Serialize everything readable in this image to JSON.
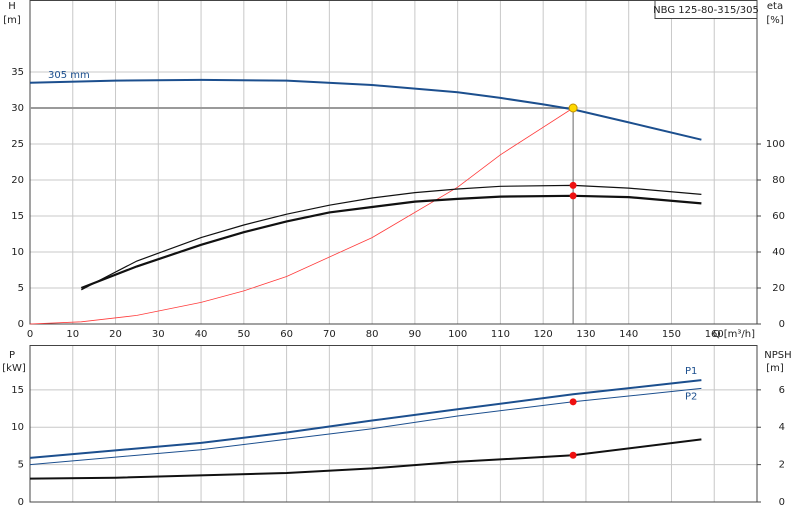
{
  "chart_data": [
    {
      "type": "line",
      "title": "NBG 125-80-315/305",
      "ylabel": "H",
      "yunit": "[m]",
      "y2label": "eta",
      "y2unit": "[%]",
      "xlabel": "Q [m³/h]",
      "xlim": [
        0,
        170
      ],
      "xticks": [
        0,
        10,
        20,
        30,
        40,
        50,
        60,
        70,
        80,
        90,
        100,
        110,
        120,
        130,
        140,
        150,
        160
      ],
      "ylim": [
        0,
        45
      ],
      "yticks": [
        0,
        5,
        10,
        15,
        20,
        25,
        30,
        35
      ],
      "y2lim": [
        0,
        180
      ],
      "y2ticks": [
        0,
        20,
        40,
        60,
        80,
        100
      ],
      "grid": true,
      "xtick_labels": true,
      "duty_point": {
        "x": 127,
        "y": 30
      },
      "series": [
        {
          "name": "305 mm",
          "color": "#1c4f8e",
          "width": 2,
          "x": [
            0,
            20,
            40,
            60,
            80,
            100,
            110,
            120,
            127,
            140,
            157
          ],
          "values": [
            33.5,
            33.8,
            33.9,
            33.8,
            33.2,
            32.2,
            31.4,
            30.5,
            29.8,
            28.0,
            25.6
          ]
        },
        {
          "color": "#ff3b3b",
          "width": 0.8,
          "x": [
            0,
            12,
            25,
            40,
            50,
            60,
            80,
            100,
            110,
            127
          ],
          "values": [
            0,
            0.3,
            1.2,
            3,
            4.6,
            6.6,
            12,
            19,
            23.5,
            30
          ]
        },
        {
          "color": "#111111",
          "width": 1.2,
          "axis": "y2",
          "x": [
            12,
            25,
            40,
            50,
            60,
            70,
            80,
            90,
            100,
            110,
            127,
            140,
            157
          ],
          "values": [
            19,
            35,
            48,
            55,
            61,
            66,
            70,
            73,
            75,
            76.5,
            77,
            75.5,
            72
          ]
        },
        {
          "color": "#111111",
          "width": 2.2,
          "axis": "y2",
          "x": [
            12,
            25,
            40,
            50,
            60,
            70,
            80,
            90,
            100,
            110,
            127,
            140,
            157
          ],
          "values": [
            20,
            32,
            44,
            51,
            57,
            62,
            65,
            68,
            69.5,
            70.8,
            71.2,
            70.5,
            67
          ]
        }
      ]
    },
    {
      "type": "line",
      "ylabel": "P",
      "yunit": "[kW]",
      "y2label": "NPSH",
      "y2unit": "[m]",
      "xlim": [
        0,
        170
      ],
      "xticks": [
        0,
        10,
        20,
        30,
        40,
        50,
        60,
        70,
        80,
        90,
        100,
        110,
        120,
        130,
        140,
        150,
        160
      ],
      "ylim": [
        0,
        21
      ],
      "yticks": [
        0,
        5,
        10,
        15
      ],
      "y2lim": [
        0,
        8.4
      ],
      "y2ticks": [
        0,
        2,
        4,
        6
      ],
      "grid": true,
      "xtick_labels": false,
      "duty_point": {
        "x": 127
      },
      "series": [
        {
          "name": "P1",
          "color": "#1c4f8e",
          "width": 2,
          "x": [
            0,
            20,
            40,
            60,
            80,
            100,
            127,
            157
          ],
          "values": [
            5.9,
            6.9,
            7.9,
            9.3,
            10.9,
            12.4,
            14.4,
            16.3
          ]
        },
        {
          "name": "P2",
          "color": "#1c4f8e",
          "width": 1,
          "x": [
            0,
            20,
            40,
            60,
            80,
            100,
            127,
            157
          ],
          "values": [
            5.0,
            6.0,
            7.0,
            8.4,
            9.8,
            11.5,
            13.4,
            15.2
          ]
        },
        {
          "color": "#111111",
          "width": 2,
          "axis": "y2",
          "x": [
            0,
            20,
            60,
            80,
            100,
            127,
            157
          ],
          "values": [
            1.25,
            1.3,
            1.55,
            1.8,
            2.15,
            2.5,
            3.35
          ]
        }
      ]
    }
  ]
}
